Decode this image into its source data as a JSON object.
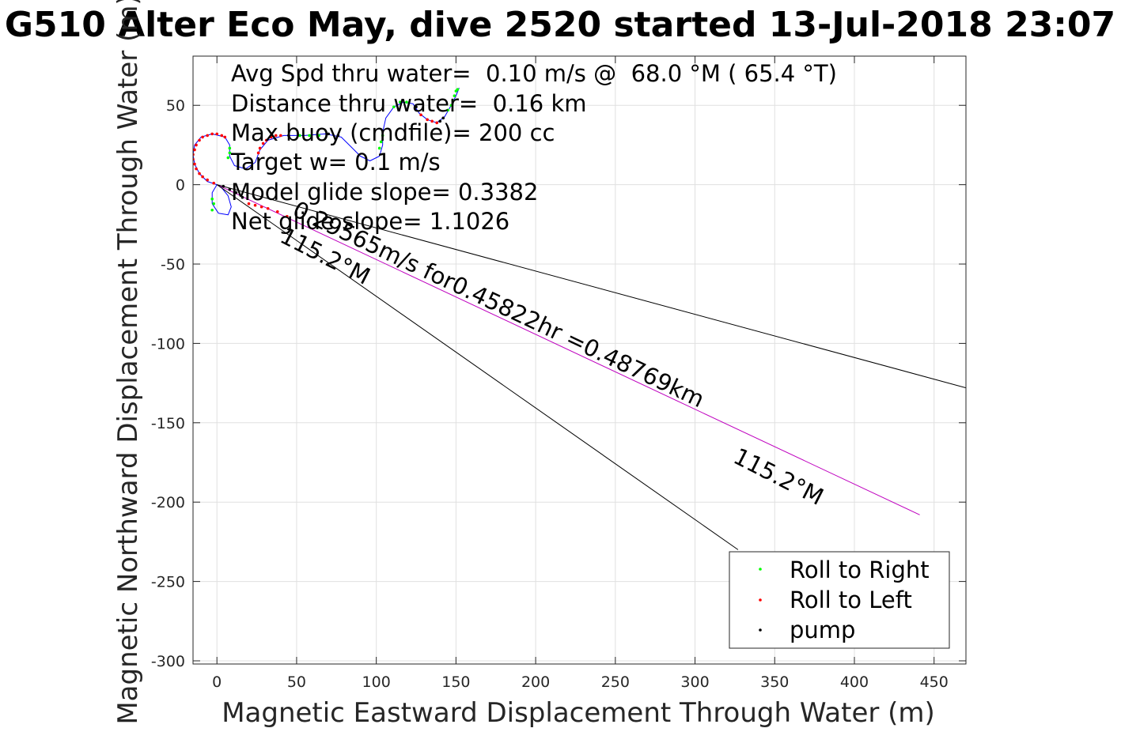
{
  "chart_data": {
    "type": "line",
    "title": "G510 Alter Eco May, dive 2520 started 13-Jul-2018 23:07",
    "xlabel": "Magnetic Eastward Displacement Through Water (m)",
    "ylabel": "Magnetic Northward Displacement Through Water (m)",
    "xlim": [
      -15,
      470
    ],
    "ylim": [
      -302,
      81
    ],
    "xticks": [
      0,
      50,
      100,
      150,
      200,
      250,
      300,
      350,
      400,
      450
    ],
    "yticks": [
      50,
      0,
      -50,
      -100,
      -150,
      -200,
      -250,
      -300
    ],
    "grid": true,
    "legend_position": "bottom-right",
    "annotations": [
      "Avg Spd thru water=  0.10 m/s @  68.0 °M ( 65.4 °T)",
      "Distance thru water=  0.16 km",
      "Max buoy (cmdfile)= 200 cc",
      "Target w= 0.1 m/s",
      "Model glide slope= 0.3382",
      "Net glide slope= 1.1026"
    ],
    "current_label": "0.29565m/s for0.45822hr =0.48769km",
    "heading_labels": [
      "115.2°M",
      "115.2°M"
    ],
    "colors": {
      "track": "#0000ff",
      "current": "#bf00bf",
      "roll_right": "#00ff00",
      "roll_left": "#ff0000",
      "pump": "#000000",
      "reference": "#000000",
      "grid": "#e0e0e0"
    },
    "series": [
      {
        "key": "track",
        "style": "line",
        "points": [
          [
            0,
            0
          ],
          [
            -6,
            2
          ],
          [
            -11,
            7
          ],
          [
            -14,
            13
          ],
          [
            -15,
            19
          ],
          [
            -14,
            25
          ],
          [
            -10,
            30
          ],
          [
            -3,
            32
          ],
          [
            5,
            30
          ],
          [
            8,
            25
          ],
          [
            8,
            18
          ],
          [
            11,
            12
          ],
          [
            18,
            10
          ],
          [
            24,
            14
          ],
          [
            27,
            22
          ],
          [
            32,
            28
          ],
          [
            42,
            31
          ],
          [
            55,
            31
          ],
          [
            68,
            32
          ],
          [
            78,
            30
          ],
          [
            84,
            24
          ],
          [
            90,
            18
          ],
          [
            96,
            15
          ],
          [
            102,
            18
          ],
          [
            104,
            25
          ],
          [
            104,
            33
          ],
          [
            106,
            42
          ],
          [
            111,
            49
          ],
          [
            117,
            52
          ],
          [
            123,
            51
          ],
          [
            127,
            45
          ],
          [
            132,
            41
          ],
          [
            138,
            39
          ],
          [
            143,
            43
          ],
          [
            147,
            50
          ],
          [
            150,
            56
          ],
          [
            152,
            61
          ]
        ]
      },
      {
        "key": "track-loop",
        "style": "line",
        "points": [
          [
            0,
            0
          ],
          [
            -3,
            -5
          ],
          [
            -3,
            -12
          ],
          [
            1,
            -18
          ],
          [
            7,
            -19
          ],
          [
            9,
            -14
          ],
          [
            7,
            -7
          ],
          [
            3,
            -2
          ],
          [
            0,
            0
          ]
        ]
      },
      {
        "key": "current-drift",
        "name": "",
        "style": "line",
        "points": [
          [
            0,
            0
          ],
          [
            441,
            -208
          ]
        ]
      },
      {
        "key": "ref-upper",
        "style": "line",
        "points": [
          [
            0,
            0
          ],
          [
            470,
            -128
          ]
        ]
      },
      {
        "key": "ref-lower",
        "style": "line",
        "points": [
          [
            0,
            0
          ],
          [
            327,
            -230
          ]
        ]
      },
      {
        "key": "roll-right",
        "name": "Roll to Right",
        "style": "points",
        "points": [
          [
            7,
            17
          ],
          [
            8,
            20
          ],
          [
            8,
            23
          ],
          [
            -3,
            -16
          ],
          [
            -2,
            -12
          ],
          [
            -3,
            -9
          ],
          [
            52,
            31
          ],
          [
            58,
            31
          ],
          [
            64,
            31
          ],
          [
            102,
            23
          ],
          [
            103,
            27
          ],
          [
            104,
            31
          ],
          [
            111,
            49
          ],
          [
            115,
            52
          ],
          [
            119,
            52
          ],
          [
            145,
            47
          ],
          [
            147,
            50
          ],
          [
            148,
            53
          ],
          [
            149,
            56
          ],
          [
            150,
            59
          ],
          [
            151,
            60
          ]
        ]
      },
      {
        "key": "roll-left",
        "name": "Roll to Left",
        "style": "points",
        "points": [
          [
            -2,
            1
          ],
          [
            -6,
            3
          ],
          [
            -9,
            5
          ],
          [
            -11,
            7
          ],
          [
            -13,
            10
          ],
          [
            -14,
            13
          ],
          [
            -15,
            16
          ],
          [
            -15,
            19
          ],
          [
            -14,
            22
          ],
          [
            -13,
            25
          ],
          [
            -11,
            28
          ],
          [
            -9,
            30
          ],
          [
            -6,
            31
          ],
          [
            -3,
            32
          ],
          [
            0,
            32
          ],
          [
            3,
            31
          ],
          [
            5,
            30
          ],
          [
            26,
            20
          ],
          [
            27,
            23
          ],
          [
            29,
            26
          ],
          [
            31,
            28
          ],
          [
            34,
            30
          ],
          [
            37,
            31
          ],
          [
            40,
            31
          ],
          [
            128,
            44
          ],
          [
            132,
            41
          ],
          [
            135,
            40
          ],
          [
            138,
            39
          ],
          [
            20,
            -12
          ],
          [
            24,
            -13
          ],
          [
            28,
            -14
          ],
          [
            32,
            -15
          ],
          [
            38,
            -17
          ],
          [
            44,
            -20
          ]
        ]
      },
      {
        "key": "pump",
        "name": "pump",
        "style": "points",
        "points": [
          [
            4,
            -1
          ],
          [
            8,
            -3
          ],
          [
            12,
            -5
          ],
          [
            16,
            -8
          ],
          [
            45,
            31
          ],
          [
            70,
            32
          ],
          [
            76,
            31
          ],
          [
            125,
            49
          ],
          [
            140,
            40
          ],
          [
            142,
            42
          ]
        ]
      }
    ]
  }
}
